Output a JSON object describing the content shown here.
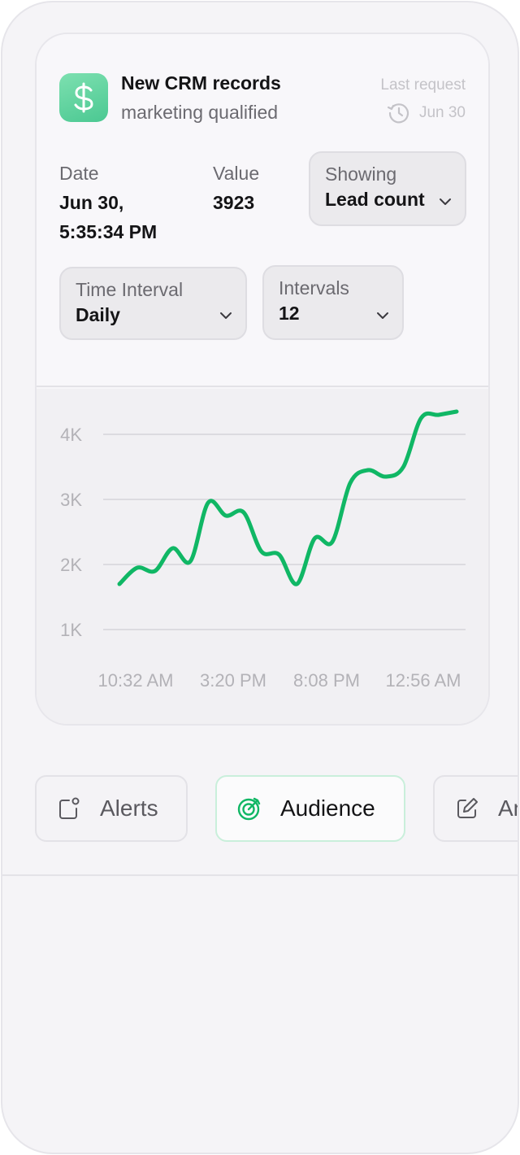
{
  "header": {
    "title": "New CRM records",
    "subtitle": "marketing qualified",
    "last_request_label": "Last request",
    "last_request_date": "Jun 30"
  },
  "details": {
    "date_label": "Date",
    "date_line1": "Jun 30,",
    "date_line2": "5:35:34 PM",
    "value_label": "Value",
    "value": "3923"
  },
  "controls": {
    "showing_label": "Showing",
    "showing_value": "Lead count",
    "time_interval_label": "Time Interval",
    "time_interval_value": "Daily",
    "intervals_label": "Intervals",
    "intervals_value": "12"
  },
  "colors": {
    "accent": "#10b765",
    "icon_green": "#4bc892"
  },
  "chart_data": {
    "type": "line",
    "x": [
      0,
      1,
      2,
      3,
      4,
      5,
      6,
      7,
      8,
      9,
      10,
      11,
      12,
      13,
      14,
      15,
      16,
      17,
      18,
      19
    ],
    "values": [
      1700,
      1950,
      1900,
      2250,
      2050,
      2950,
      2750,
      2800,
      2200,
      2150,
      1700,
      2400,
      2350,
      3250,
      3450,
      3350,
      3500,
      4250,
      4300,
      4350
    ],
    "x_tick_labels": [
      "10:32 AM",
      "3:20 PM",
      "8:08 PM",
      "12:56 AM"
    ],
    "y_tick_labels": [
      "4K",
      "3K",
      "2K",
      "1K"
    ],
    "y_ticks": [
      4000,
      3000,
      2000,
      1000
    ],
    "ylim": [
      1000,
      4000
    ],
    "grid": true,
    "color": "#10b765"
  },
  "tabs": [
    {
      "label": "Alerts",
      "icon": "alert-square-icon"
    },
    {
      "label": "Audience",
      "icon": "target-icon"
    },
    {
      "label": "An",
      "icon": "edit-icon"
    }
  ]
}
